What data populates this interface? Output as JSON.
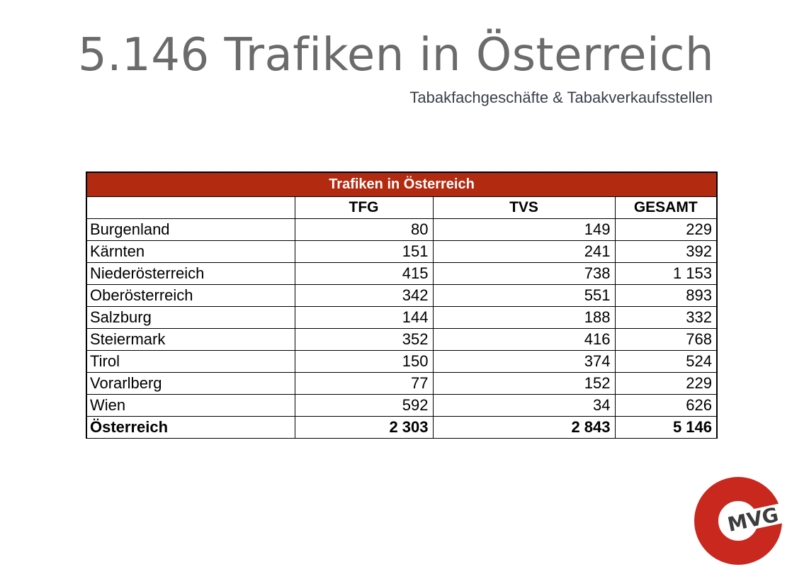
{
  "header": {
    "title": "5.146 Trafiken in Österreich",
    "subtitle": "Tabakfachgeschäfte & Tabakverkaufsstellen"
  },
  "table": {
    "caption": "Trafiken in Österreich",
    "columns": [
      "",
      "TFG",
      "TVS",
      "GESAMT"
    ],
    "rows": [
      {
        "region": "Burgenland",
        "tfg": "80",
        "tvs": "149",
        "gesamt": "229"
      },
      {
        "region": "Kärnten",
        "tfg": "151",
        "tvs": "241",
        "gesamt": "392"
      },
      {
        "region": "Niederösterreich",
        "tfg": "415",
        "tvs": "738",
        "gesamt": "1 153"
      },
      {
        "region": "Oberösterreich",
        "tfg": "342",
        "tvs": "551",
        "gesamt": "893"
      },
      {
        "region": "Salzburg",
        "tfg": "144",
        "tvs": "188",
        "gesamt": "332"
      },
      {
        "region": "Steiermark",
        "tfg": "352",
        "tvs": "416",
        "gesamt": "768"
      },
      {
        "region": "Tirol",
        "tfg": "150",
        "tvs": "374",
        "gesamt": "524"
      },
      {
        "region": "Vorarlberg",
        "tfg": "77",
        "tvs": "152",
        "gesamt": "229"
      },
      {
        "region": "Wien",
        "tfg": "592",
        "tvs": "34",
        "gesamt": "626"
      }
    ],
    "total": {
      "region": "Österreich",
      "tfg": "2 303",
      "tvs": "2 843",
      "gesamt": "5 146"
    }
  },
  "logo": {
    "text": "MVG",
    "ring_color": "#c8281e",
    "text_color": "#3c3c3c"
  }
}
